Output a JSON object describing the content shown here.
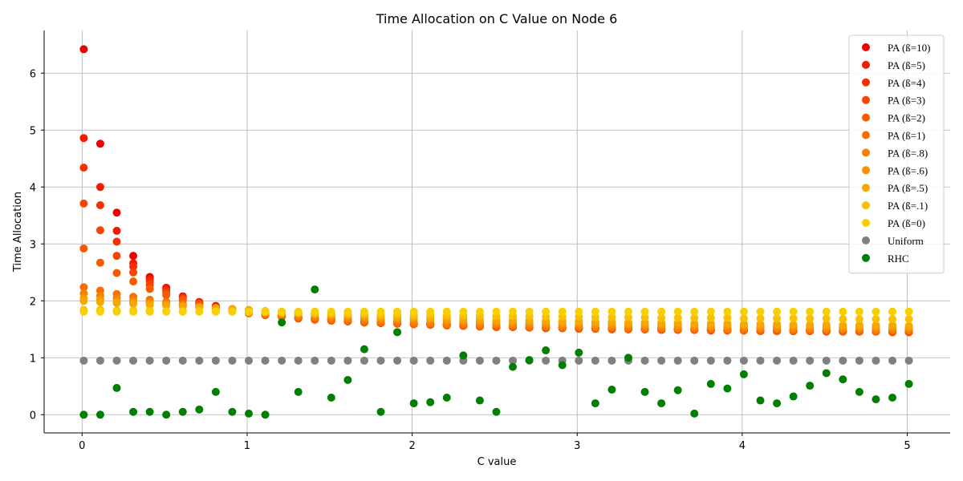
{
  "chart_data": {
    "type": "scatter",
    "title": "Time Allocation on C Value on Node 6",
    "xlabel": "C value",
    "ylabel": "Time Allocation",
    "xlim": [
      -0.23,
      5.26
    ],
    "ylim": [
      -0.32,
      6.75
    ],
    "xticks": [
      0,
      1,
      2,
      3,
      4,
      5
    ],
    "yticks": [
      0,
      1,
      2,
      3,
      4,
      5,
      6
    ],
    "grid": true,
    "legend_position": "top-right",
    "x": [
      0.01,
      0.11,
      0.21,
      0.31,
      0.41,
      0.51,
      0.61,
      0.71,
      0.81,
      0.91,
      1.01,
      1.11,
      1.21,
      1.31,
      1.41,
      1.51,
      1.61,
      1.71,
      1.81,
      1.91,
      2.01,
      2.11,
      2.21,
      2.31,
      2.41,
      2.51,
      2.61,
      2.71,
      2.81,
      2.91,
      3.01,
      3.11,
      3.21,
      3.31,
      3.41,
      3.51,
      3.61,
      3.71,
      3.81,
      3.91,
      4.01,
      4.11,
      4.21,
      4.31,
      4.41,
      4.51,
      4.61,
      4.71,
      4.81,
      4.91,
      5.01
    ],
    "series": [
      {
        "name": "PA (ß=10)",
        "color": "#f00000",
        "values": [
          6.42,
          4.76,
          3.55,
          2.79,
          2.42,
          2.23,
          2.08,
          1.98,
          1.91,
          1.85,
          1.8,
          1.76,
          1.73,
          1.71,
          1.69,
          1.67,
          1.65,
          1.63,
          1.62,
          1.61,
          1.6,
          1.59,
          1.58,
          1.57,
          1.56,
          1.55,
          1.54,
          1.54,
          1.53,
          1.53,
          1.52,
          1.52,
          1.51,
          1.51,
          1.5,
          1.5,
          1.5,
          1.49,
          1.49,
          1.49,
          1.48,
          1.48,
          1.48,
          1.47,
          1.47,
          1.47,
          1.47,
          1.46,
          1.46,
          1.46,
          1.46
        ]
      },
      {
        "name": "PA (ß=5)",
        "color": "#f41a00",
        "values": [
          4.86,
          4.0,
          3.23,
          2.66,
          2.38,
          2.21,
          2.07,
          1.97,
          1.9,
          1.84,
          1.79,
          1.76,
          1.73,
          1.7,
          1.68,
          1.66,
          1.64,
          1.63,
          1.61,
          1.6,
          1.59,
          1.58,
          1.57,
          1.56,
          1.55,
          1.55,
          1.54,
          1.53,
          1.53,
          1.52,
          1.52,
          1.51,
          1.51,
          1.5,
          1.5,
          1.5,
          1.49,
          1.49,
          1.49,
          1.48,
          1.48,
          1.48,
          1.47,
          1.47,
          1.47,
          1.47,
          1.46,
          1.46,
          1.46,
          1.46,
          1.45
        ]
      },
      {
        "name": "PA (ß=4)",
        "color": "#f63000",
        "values": [
          4.34,
          3.68,
          3.04,
          2.6,
          2.34,
          2.18,
          2.05,
          1.96,
          1.89,
          1.84,
          1.79,
          1.75,
          1.72,
          1.7,
          1.68,
          1.66,
          1.64,
          1.62,
          1.61,
          1.6,
          1.59,
          1.58,
          1.57,
          1.56,
          1.55,
          1.54,
          1.54,
          1.53,
          1.52,
          1.52,
          1.51,
          1.51,
          1.5,
          1.5,
          1.5,
          1.49,
          1.49,
          1.49,
          1.48,
          1.48,
          1.48,
          1.47,
          1.47,
          1.47,
          1.47,
          1.46,
          1.46,
          1.46,
          1.46,
          1.45,
          1.45
        ]
      },
      {
        "name": "PA (ß=3)",
        "color": "#f84400",
        "values": [
          3.71,
          3.24,
          2.79,
          2.5,
          2.28,
          2.14,
          2.03,
          1.95,
          1.88,
          1.83,
          1.79,
          1.75,
          1.72,
          1.69,
          1.67,
          1.65,
          1.64,
          1.62,
          1.61,
          1.6,
          1.59,
          1.58,
          1.57,
          1.56,
          1.55,
          1.54,
          1.54,
          1.53,
          1.52,
          1.52,
          1.51,
          1.51,
          1.5,
          1.5,
          1.5,
          1.49,
          1.49,
          1.49,
          1.48,
          1.48,
          1.48,
          1.47,
          1.47,
          1.47,
          1.47,
          1.46,
          1.46,
          1.46,
          1.46,
          1.45,
          1.45
        ]
      },
      {
        "name": "PA (ß=2)",
        "color": "#f85a00",
        "values": [
          2.92,
          2.67,
          2.49,
          2.34,
          2.21,
          2.1,
          2.01,
          1.93,
          1.87,
          1.82,
          1.78,
          1.75,
          1.72,
          1.69,
          1.67,
          1.65,
          1.64,
          1.62,
          1.61,
          1.6,
          1.59,
          1.58,
          1.57,
          1.56,
          1.55,
          1.55,
          1.54,
          1.53,
          1.53,
          1.52,
          1.52,
          1.51,
          1.51,
          1.5,
          1.5,
          1.5,
          1.49,
          1.49,
          1.49,
          1.48,
          1.48,
          1.48,
          1.47,
          1.47,
          1.47,
          1.47,
          1.46,
          1.46,
          1.46,
          1.46,
          1.46
        ]
      },
      {
        "name": "PA (ß=1)",
        "color": "#f86e00",
        "values": [
          2.24,
          2.18,
          2.12,
          2.07,
          2.02,
          1.98,
          1.94,
          1.9,
          1.86,
          1.83,
          1.8,
          1.77,
          1.74,
          1.72,
          1.7,
          1.68,
          1.66,
          1.65,
          1.63,
          1.62,
          1.61,
          1.6,
          1.59,
          1.58,
          1.57,
          1.57,
          1.56,
          1.55,
          1.55,
          1.54,
          1.54,
          1.53,
          1.53,
          1.52,
          1.52,
          1.52,
          1.51,
          1.51,
          1.51,
          1.5,
          1.5,
          1.5,
          1.5,
          1.49,
          1.49,
          1.49,
          1.49,
          1.49,
          1.48,
          1.48,
          1.48
        ]
      },
      {
        "name": "PA (ß=.8)",
        "color": "#f88000",
        "values": [
          2.13,
          2.09,
          2.05,
          2.01,
          1.98,
          1.95,
          1.92,
          1.89,
          1.86,
          1.83,
          1.81,
          1.78,
          1.76,
          1.74,
          1.72,
          1.7,
          1.69,
          1.67,
          1.66,
          1.65,
          1.63,
          1.62,
          1.61,
          1.61,
          1.6,
          1.59,
          1.58,
          1.58,
          1.57,
          1.56,
          1.56,
          1.55,
          1.55,
          1.55,
          1.54,
          1.54,
          1.53,
          1.53,
          1.53,
          1.52,
          1.52,
          1.52,
          1.52,
          1.51,
          1.51,
          1.51,
          1.51,
          1.51,
          1.5,
          1.5,
          1.5
        ]
      },
      {
        "name": "PA (ß=.6)",
        "color": "#f89400",
        "values": [
          2.04,
          2.02,
          1.99,
          1.97,
          1.95,
          1.93,
          1.91,
          1.89,
          1.87,
          1.85,
          1.83,
          1.81,
          1.79,
          1.77,
          1.76,
          1.74,
          1.73,
          1.71,
          1.7,
          1.69,
          1.68,
          1.67,
          1.66,
          1.65,
          1.64,
          1.63,
          1.62,
          1.62,
          1.61,
          1.6,
          1.6,
          1.59,
          1.59,
          1.58,
          1.58,
          1.57,
          1.57,
          1.57,
          1.56,
          1.56,
          1.56,
          1.55,
          1.55,
          1.55,
          1.55,
          1.54,
          1.54,
          1.54,
          1.54,
          1.54,
          1.53
        ]
      },
      {
        "name": "PA (ß=.5)",
        "color": "#f8a600",
        "values": [
          2.0,
          1.98,
          1.96,
          1.95,
          1.93,
          1.92,
          1.9,
          1.89,
          1.87,
          1.86,
          1.84,
          1.82,
          1.81,
          1.8,
          1.78,
          1.77,
          1.76,
          1.75,
          1.73,
          1.72,
          1.71,
          1.7,
          1.7,
          1.69,
          1.68,
          1.67,
          1.66,
          1.66,
          1.65,
          1.64,
          1.64,
          1.63,
          1.63,
          1.62,
          1.62,
          1.61,
          1.61,
          1.6,
          1.6,
          1.6,
          1.59,
          1.59,
          1.59,
          1.58,
          1.58,
          1.58,
          1.57,
          1.57,
          1.57,
          1.57,
          1.56
        ]
      },
      {
        "name": "PA (ß=.1)",
        "color": "#f8c000",
        "values": [
          1.84,
          1.84,
          1.83,
          1.83,
          1.83,
          1.82,
          1.82,
          1.82,
          1.81,
          1.81,
          1.8,
          1.8,
          1.79,
          1.79,
          1.78,
          1.78,
          1.77,
          1.77,
          1.76,
          1.76,
          1.75,
          1.75,
          1.74,
          1.74,
          1.74,
          1.73,
          1.73,
          1.73,
          1.72,
          1.72,
          1.72,
          1.71,
          1.71,
          1.71,
          1.71,
          1.7,
          1.7,
          1.7,
          1.7,
          1.7,
          1.69,
          1.69,
          1.69,
          1.69,
          1.69,
          1.69,
          1.68,
          1.68,
          1.68,
          1.68,
          1.68
        ]
      },
      {
        "name": "PA (ß=0)",
        "color": "#f8d000",
        "values": [
          1.81,
          1.81,
          1.81,
          1.81,
          1.81,
          1.81,
          1.81,
          1.81,
          1.81,
          1.81,
          1.81,
          1.81,
          1.81,
          1.81,
          1.81,
          1.81,
          1.81,
          1.81,
          1.81,
          1.81,
          1.81,
          1.81,
          1.81,
          1.81,
          1.81,
          1.81,
          1.81,
          1.81,
          1.81,
          1.81,
          1.81,
          1.81,
          1.81,
          1.81,
          1.81,
          1.81,
          1.81,
          1.81,
          1.81,
          1.81,
          1.81,
          1.81,
          1.81,
          1.81,
          1.81,
          1.81,
          1.81,
          1.81,
          1.81,
          1.81,
          1.81
        ]
      },
      {
        "name": "Uniform",
        "color": "#808080",
        "values": [
          0.95,
          0.95,
          0.95,
          0.95,
          0.95,
          0.95,
          0.95,
          0.95,
          0.95,
          0.95,
          0.95,
          0.95,
          0.95,
          0.95,
          0.95,
          0.95,
          0.95,
          0.95,
          0.95,
          0.95,
          0.95,
          0.95,
          0.95,
          0.95,
          0.95,
          0.95,
          0.95,
          0.95,
          0.95,
          0.95,
          0.95,
          0.95,
          0.95,
          0.95,
          0.95,
          0.95,
          0.95,
          0.95,
          0.95,
          0.95,
          0.95,
          0.95,
          0.95,
          0.95,
          0.95,
          0.95,
          0.95,
          0.95,
          0.95,
          0.95,
          0.95
        ]
      },
      {
        "name": "RHC",
        "color": "#008000",
        "values": [
          0.0,
          0.0,
          0.47,
          0.05,
          0.05,
          0.0,
          0.05,
          0.09,
          0.4,
          0.05,
          0.02,
          0.0,
          1.62,
          0.4,
          2.2,
          0.3,
          0.61,
          1.15,
          0.05,
          1.45,
          0.2,
          0.22,
          0.3,
          1.04,
          0.25,
          0.05,
          0.84,
          0.96,
          1.13,
          0.87,
          1.09,
          0.2,
          0.44,
          1.0,
          0.4,
          0.2,
          0.43,
          0.02,
          0.54,
          0.46,
          0.71,
          0.25,
          0.2,
          0.32,
          0.51,
          0.73,
          0.62,
          0.4,
          0.27,
          0.3,
          0.54
        ]
      }
    ]
  }
}
